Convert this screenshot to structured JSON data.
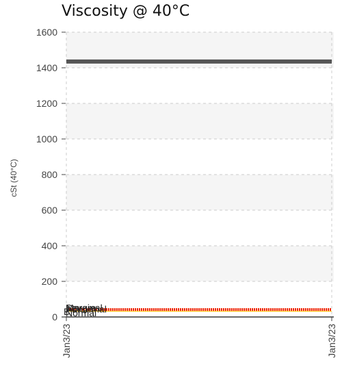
{
  "chart_data": {
    "type": "line",
    "title": "Viscosity @ 40°C",
    "xlabel": "",
    "ylabel": "cSt (40°C)",
    "ylim": [
      0,
      1600
    ],
    "yticks": [
      "0",
      "200",
      "400",
      "600",
      "800",
      "1000",
      "1200",
      "1400",
      "1600"
    ],
    "xticks": [
      "Jan3/23",
      "Jan3/23"
    ],
    "grid": true,
    "series": [
      {
        "role": "upper-limit",
        "color": "#555555",
        "values": [
          1435,
          1435
        ]
      },
      {
        "role": "data",
        "color": "#ee2200",
        "values": [
          40,
          40
        ]
      }
    ],
    "band_labels": [
      {
        "text": "Severe",
        "value": 40
      },
      {
        "text": "Abnormal",
        "value": 40
      },
      {
        "text": "Marginal",
        "value": 40
      },
      {
        "text": "Normal",
        "value": 20
      },
      {
        "text": "B",
        "value": 20
      }
    ]
  }
}
